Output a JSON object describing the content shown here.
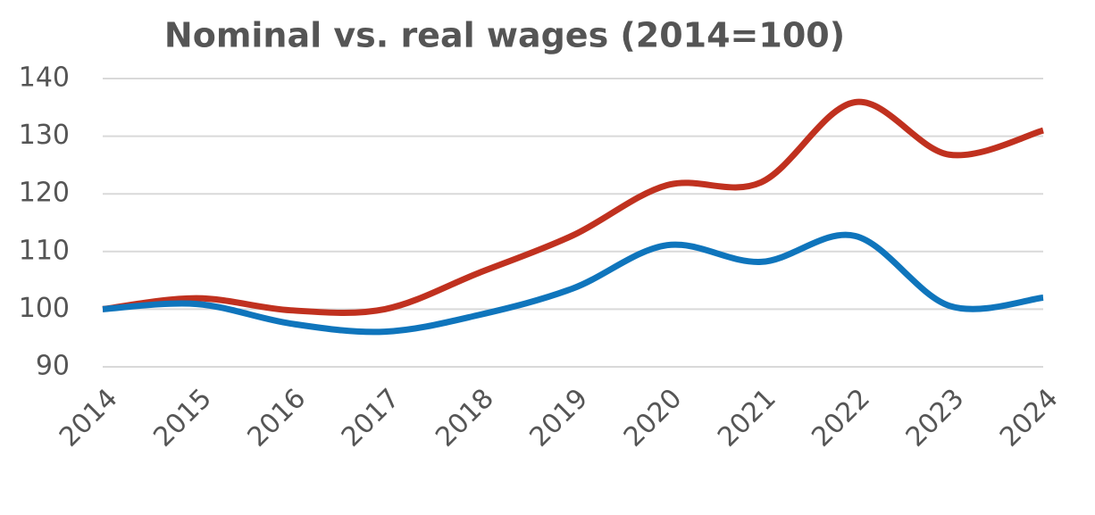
{
  "chart_data": {
    "type": "line",
    "title": "Nominal vs. real  wages (2014=100)",
    "categories": [
      "2014",
      "2015",
      "2016",
      "2017",
      "2018",
      "2019",
      "2020",
      "2021",
      "2022",
      "2023",
      "2024"
    ],
    "series": [
      {
        "color": "#c0311f",
        "values": [
          100,
          101.9,
          99.8,
          100,
          106.3,
          112.8,
          121.5,
          122,
          135.9,
          126.8,
          131
        ]
      },
      {
        "color": "#0f75bc",
        "values": [
          100,
          100.9,
          97.5,
          96.1,
          99,
          103.6,
          111.1,
          108.2,
          112.7,
          100.6,
          102
        ]
      }
    ],
    "ylim": [
      90,
      140
    ],
    "yticks": [
      90,
      100,
      110,
      120,
      130,
      140
    ],
    "grid": true
  }
}
